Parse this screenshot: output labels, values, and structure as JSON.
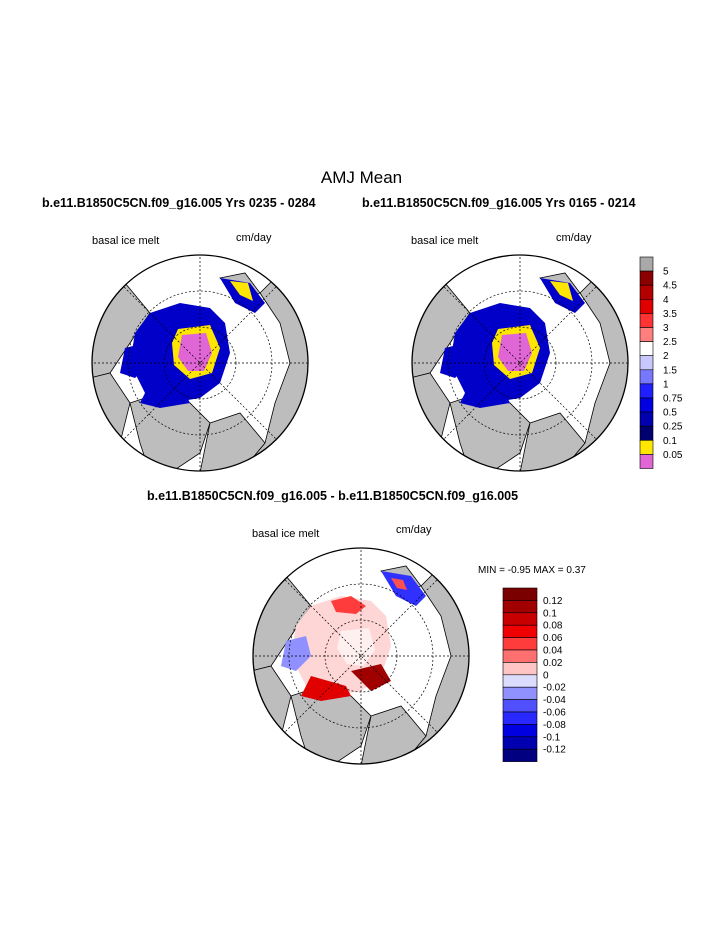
{
  "figure": {
    "title": "AMJ Mean",
    "panel_top_left_title": "b.e11.B1850C5CN.f09_g16.005  Yrs 0235 - 0284",
    "panel_top_right_title": "b.e11.B1850C5CN.f09_g16.005  Yrs 0165 - 0214",
    "panel_diff_title": "b.e11.B1850C5CN.f09_g16.005 - b.e11.B1850C5CN.f09_g16.005"
  },
  "panels": [
    {
      "variable": "basal ice melt",
      "units": "cm/day"
    },
    {
      "variable": "basal ice melt",
      "units": "cm/day"
    },
    {
      "variable": "basal ice melt",
      "units": "cm/day"
    }
  ],
  "diff_stats": {
    "min_label": "MIN =",
    "min": "-0.95",
    "max_label": "MAX =",
    "max": "0.37"
  },
  "colorbar_top": {
    "levels": [
      "5",
      "4.5",
      "4",
      "3.5",
      "3",
      "2.5",
      "2",
      "1.5",
      "1",
      "0.75",
      "0.5",
      "0.25",
      "0.1",
      "0.05"
    ],
    "colors": [
      "#a9a9a9",
      "#8b0000",
      "#b20000",
      "#e00000",
      "#ff3333",
      "#ff7f7f",
      "#ffffff",
      "#c8c8ff",
      "#7878ff",
      "#2020ff",
      "#0000e0",
      "#0000b0",
      "#00006e",
      "#ffe600",
      "#e066d6"
    ]
  },
  "colorbar_diff": {
    "levels": [
      "0.12",
      "0.1",
      "0.08",
      "0.06",
      "0.04",
      "0.02",
      "0",
      "-0.02",
      "-0.04",
      "-0.06",
      "-0.08",
      "-0.1",
      "-0.12"
    ],
    "colors": [
      "#7a0000",
      "#a00000",
      "#c80000",
      "#f00000",
      "#ff3c3c",
      "#ff7070",
      "#ffc4c4",
      "#dcdcff",
      "#9090ff",
      "#5050ff",
      "#2828ff",
      "#0000e0",
      "#0000b0",
      "#000080"
    ]
  }
}
